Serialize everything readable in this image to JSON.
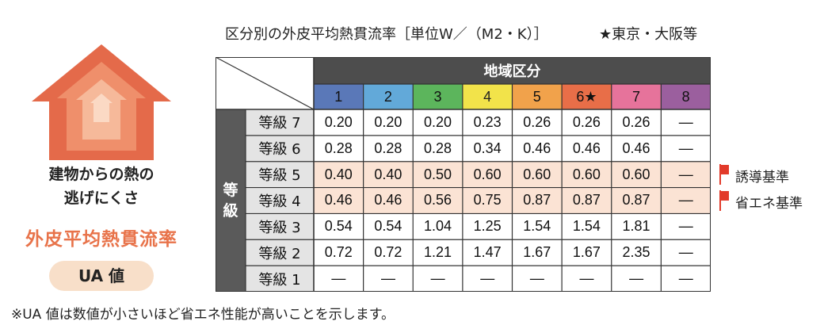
{
  "left_panel": {
    "subtitle_line1": "建物からの熱の",
    "subtitle_line2": "逃げにくさ",
    "headline": "外皮平均熱貫流率",
    "badge": "UA 値",
    "colors": {
      "house_outer": "#e46a4a",
      "house_mid": "#ef8f6b",
      "house_inner": "#f6b99a",
      "house_core": "#fbd9c4",
      "headline": "#e8734a",
      "badge_bg": "#f8dfc9"
    }
  },
  "table_title": "区分別の外皮平均熱貫流率［単位W／（M2・K）］",
  "table_note": "★東京・大阪等",
  "table": {
    "region_header": "地域区分",
    "row_group_label": [
      "等",
      "級"
    ],
    "regions": [
      {
        "label": "1",
        "color": "#5a78b8"
      },
      {
        "label": "2",
        "color": "#62a9d9"
      },
      {
        "label": "3",
        "color": "#5cb55c"
      },
      {
        "label": "4",
        "color": "#f2e34a"
      },
      {
        "label": "5",
        "color": "#f1a24b"
      },
      {
        "label": "6★",
        "color": "#e86e48"
      },
      {
        "label": "7",
        "color": "#e6739b"
      },
      {
        "label": "8",
        "color": "#9b5f9e"
      }
    ],
    "rows": [
      {
        "grade": "等級 7",
        "values": [
          "0.20",
          "0.20",
          "0.20",
          "0.23",
          "0.26",
          "0.26",
          "0.26",
          "—"
        ],
        "highlight": false
      },
      {
        "grade": "等級 6",
        "values": [
          "0.28",
          "0.28",
          "0.28",
          "0.34",
          "0.46",
          "0.46",
          "0.46",
          "—"
        ],
        "highlight": false
      },
      {
        "grade": "等級 5",
        "values": [
          "0.40",
          "0.40",
          "0.50",
          "0.60",
          "0.60",
          "0.60",
          "0.60",
          "—"
        ],
        "highlight": true
      },
      {
        "grade": "等級 4",
        "values": [
          "0.46",
          "0.46",
          "0.56",
          "0.75",
          "0.87",
          "0.87",
          "0.87",
          "—"
        ],
        "highlight": true
      },
      {
        "grade": "等級 3",
        "values": [
          "0.54",
          "0.54",
          "1.04",
          "1.25",
          "1.54",
          "1.54",
          "1.81",
          "—"
        ],
        "highlight": false
      },
      {
        "grade": "等級 2",
        "values": [
          "0.72",
          "0.72",
          "1.21",
          "1.47",
          "1.67",
          "1.67",
          "2.35",
          "—"
        ],
        "highlight": false
      },
      {
        "grade": "等級 1",
        "values": [
          "—",
          "—",
          "—",
          "—",
          "—",
          "—",
          "—",
          "—"
        ],
        "highlight": false
      }
    ],
    "colors": {
      "header_dark": "#4d4d4d",
      "grade_col": "#e4e4e4",
      "group_col": "#5a5a5a",
      "highlight": "#fbe3d4",
      "border": "#333333"
    }
  },
  "markers": [
    {
      "label": "誘導基準",
      "icon": "red-flag-icon",
      "color": "#e23a2a"
    },
    {
      "label": "省エネ基準",
      "icon": "red-flag-icon",
      "color": "#e23a2a"
    }
  ],
  "footnote": "※UA 値は数値が小さいほど省エネ性能が高いことを示します。"
}
